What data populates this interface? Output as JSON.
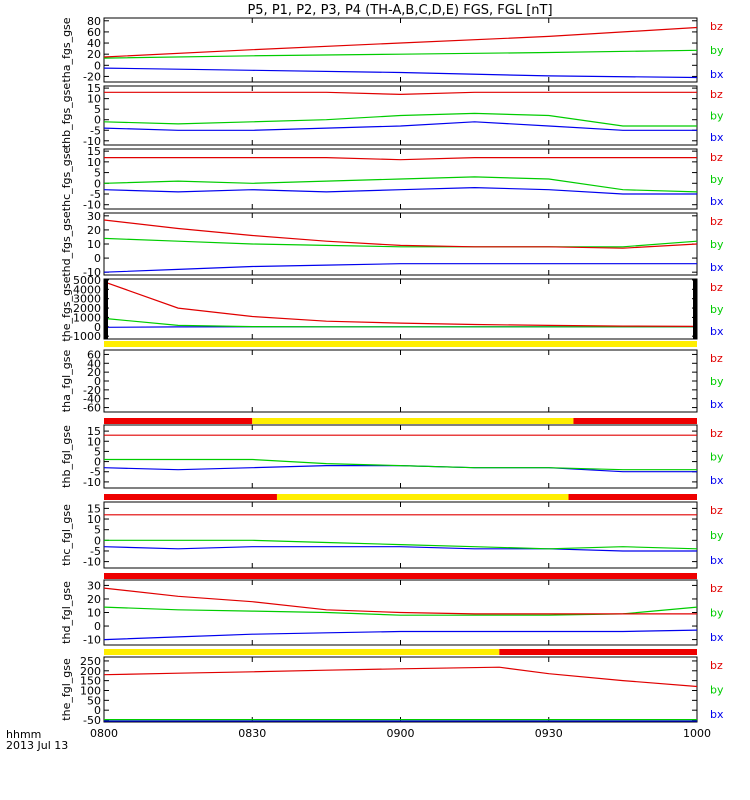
{
  "title": "P5, P1, P2, P3, P4 (TH-A,B,C,D,E) FGS, FGL [nT]",
  "x_axis": {
    "ticks": [
      "0800",
      "0830",
      "0900",
      "0930",
      "1000"
    ],
    "label_line1": "hhmm",
    "label_line2": "2013 Jul 13"
  },
  "colors": {
    "bz": "#e00000",
    "by": "#00cc00",
    "bx": "#0000ee",
    "bar_yellow": "#ffee00",
    "bar_red": "#ee0000",
    "black": "#000000"
  },
  "chart_data": [
    {
      "type": "line",
      "ylabel": "tha_fgs_gse",
      "yticks": [
        "80",
        "60",
        "40",
        "20",
        "0",
        "-20"
      ],
      "ylim": [
        -30,
        85
      ],
      "x": [
        "0800",
        "0830",
        "0900",
        "0930",
        "1000"
      ],
      "series": [
        {
          "name": "bz",
          "values": [
            15,
            28,
            40,
            52,
            68
          ]
        },
        {
          "name": "by",
          "values": [
            13,
            17,
            20,
            23,
            27
          ]
        },
        {
          "name": "bx",
          "values": [
            -5,
            -9,
            -13,
            -19,
            -22
          ]
        }
      ]
    },
    {
      "type": "line",
      "ylabel": "thb_fgs_gse",
      "yticks": [
        "15",
        "10",
        "5",
        "0",
        "-5",
        "-10"
      ],
      "ylim": [
        -12,
        16
      ],
      "x": [
        "0800",
        "0815",
        "0830",
        "0845",
        "0900",
        "0915",
        "0930",
        "0945",
        "1000"
      ],
      "series": [
        {
          "name": "bz",
          "values": [
            13,
            13,
            13,
            13,
            12,
            13,
            13,
            13,
            13
          ]
        },
        {
          "name": "by",
          "values": [
            -1,
            -2,
            -1,
            0,
            2,
            3,
            2,
            -3,
            -3
          ]
        },
        {
          "name": "bx",
          "values": [
            -4,
            -5,
            -5,
            -4,
            -3,
            -1,
            -3,
            -5,
            -5
          ]
        }
      ]
    },
    {
      "type": "line",
      "ylabel": "thc_fgs_gse",
      "yticks": [
        "15",
        "10",
        "5",
        "0",
        "-5",
        "-10"
      ],
      "ylim": [
        -12,
        16
      ],
      "x": [
        "0800",
        "0815",
        "0830",
        "0845",
        "0900",
        "0915",
        "0930",
        "0945",
        "1000"
      ],
      "series": [
        {
          "name": "bz",
          "values": [
            12,
            12,
            12,
            12,
            11,
            12,
            12,
            12,
            12
          ]
        },
        {
          "name": "by",
          "values": [
            0,
            1,
            0,
            1,
            2,
            3,
            2,
            -3,
            -4
          ]
        },
        {
          "name": "bx",
          "values": [
            -3,
            -4,
            -3,
            -4,
            -3,
            -2,
            -3,
            -5,
            -5
          ]
        }
      ]
    },
    {
      "type": "line",
      "ylabel": "thd_fgs_gse",
      "yticks": [
        "30",
        "20",
        "10",
        "0",
        "-10"
      ],
      "ylim": [
        -12,
        32
      ],
      "x": [
        "0800",
        "0815",
        "0830",
        "0845",
        "0900",
        "0915",
        "0930",
        "0945",
        "1000"
      ],
      "series": [
        {
          "name": "bz",
          "values": [
            27,
            21,
            16,
            12,
            9,
            8,
            8,
            7,
            10
          ]
        },
        {
          "name": "by",
          "values": [
            14,
            12,
            10,
            9,
            8,
            8,
            8,
            8,
            12
          ]
        },
        {
          "name": "bx",
          "values": [
            -10,
            -8,
            -6,
            -5,
            -4,
            -4,
            -4,
            -4,
            -4
          ]
        }
      ]
    },
    {
      "type": "line",
      "ylabel": "the_fgs_gse",
      "yticks": [
        "5000",
        "4000",
        "3000",
        "2000",
        "1000",
        "0",
        "-1000"
      ],
      "ylim": [
        -1300,
        5100
      ],
      "x": [
        "0800",
        "0815",
        "0830",
        "0845",
        "0900",
        "0915",
        "0930",
        "0945",
        "1000"
      ],
      "series": [
        {
          "name": "bz",
          "values": [
            4800,
            2000,
            1100,
            600,
            400,
            250,
            150,
            80,
            40
          ]
        },
        {
          "name": "by",
          "values": [
            900,
            150,
            20,
            0,
            0,
            0,
            0,
            0,
            0
          ]
        },
        {
          "name": "bx",
          "values": [
            -50,
            -10,
            0,
            0,
            0,
            0,
            0,
            0,
            0
          ]
        }
      ],
      "state_bar": [
        {
          "from": "0800",
          "to": "1000",
          "color": "yellow"
        }
      ]
    },
    {
      "type": "line",
      "ylabel": "tha_fgl_gse",
      "yticks": [
        "60",
        "40",
        "20",
        "0",
        "-20",
        "-40",
        "-60"
      ],
      "ylim": [
        -70,
        70
      ],
      "x": [],
      "series": [],
      "state_bar": [
        {
          "from": "0800",
          "to": "0830",
          "color": "red"
        },
        {
          "from": "0830",
          "to": "0935",
          "color": "yellow"
        },
        {
          "from": "0935",
          "to": "1000",
          "color": "red"
        }
      ]
    },
    {
      "type": "line",
      "ylabel": "thb_fgl_gse",
      "yticks": [
        "15",
        "10",
        "5",
        "0",
        "-5",
        "-10"
      ],
      "ylim": [
        -13,
        18
      ],
      "x": [
        "0800",
        "0815",
        "0830",
        "0845",
        "0900",
        "0915",
        "0930",
        "0945",
        "1000"
      ],
      "series": [
        {
          "name": "bz",
          "values": [
            13,
            13,
            13,
            13,
            13,
            13,
            13,
            13,
            13
          ]
        },
        {
          "name": "by",
          "values": [
            1,
            1,
            1,
            -1,
            -2,
            -3,
            -3,
            -4,
            -4
          ]
        },
        {
          "name": "bx",
          "values": [
            -3,
            -4,
            -3,
            -2,
            -2,
            -3,
            -3,
            -5,
            -5
          ]
        }
      ],
      "state_bar": [
        {
          "from": "0800",
          "to": "0835",
          "color": "red"
        },
        {
          "from": "0835",
          "to": "0934",
          "color": "yellow"
        },
        {
          "from": "0934",
          "to": "1000",
          "color": "red"
        }
      ]
    },
    {
      "type": "line",
      "ylabel": "thc_fgl_gse",
      "yticks": [
        "15",
        "10",
        "5",
        "0",
        "-5",
        "-10"
      ],
      "ylim": [
        -13,
        18
      ],
      "x": [
        "0800",
        "0815",
        "0830",
        "0845",
        "0900",
        "0915",
        "0930",
        "0945",
        "1000"
      ],
      "series": [
        {
          "name": "bz",
          "values": [
            12,
            12,
            12,
            12,
            12,
            12,
            12,
            12,
            12
          ]
        },
        {
          "name": "by",
          "values": [
            0,
            0,
            0,
            -1,
            -2,
            -3,
            -4,
            -3,
            -4
          ]
        },
        {
          "name": "bx",
          "values": [
            -3,
            -4,
            -3,
            -3,
            -3,
            -4,
            -4,
            -5,
            -5
          ]
        }
      ],
      "state_bar": [
        {
          "from": "0800",
          "to": "1000",
          "color": "red"
        }
      ]
    },
    {
      "type": "line",
      "ylabel": "thd_fgl_gse",
      "yticks": [
        "30",
        "20",
        "10",
        "0",
        "-10"
      ],
      "ylim": [
        -14,
        34
      ],
      "x": [
        "0800",
        "0815",
        "0830",
        "0845",
        "0900",
        "0915",
        "0930",
        "0945",
        "1000"
      ],
      "series": [
        {
          "name": "bz",
          "values": [
            28,
            22,
            18,
            12,
            10,
            9,
            9,
            9,
            9
          ]
        },
        {
          "name": "by",
          "values": [
            14,
            12,
            11,
            10,
            8,
            8,
            8,
            9,
            14
          ]
        },
        {
          "name": "bx",
          "values": [
            -10,
            -8,
            -6,
            -5,
            -4,
            -4,
            -4,
            -4,
            -3
          ]
        }
      ],
      "state_bar": [
        {
          "from": "0800",
          "to": "0920",
          "color": "yellow"
        },
        {
          "from": "0920",
          "to": "1000",
          "color": "red"
        }
      ]
    },
    {
      "type": "line",
      "ylabel": "the_fgl_gse",
      "yticks": [
        "250",
        "200",
        "150",
        "100",
        "50",
        "0",
        "-50"
      ],
      "ylim": [
        -60,
        270
      ],
      "x": [
        "0800",
        "0815",
        "0830",
        "0845",
        "0900",
        "0920",
        "0930",
        "0945",
        "1000"
      ],
      "series": [
        {
          "name": "bz",
          "values": [
            180,
            188,
            195,
            203,
            210,
            218,
            185,
            150,
            120
          ]
        },
        {
          "name": "by",
          "values": [
            -48,
            -48,
            -48,
            -48,
            -48,
            -48,
            -48,
            -48,
            -48
          ]
        },
        {
          "name": "bx",
          "values": [
            -55,
            -55,
            -55,
            -55,
            -55,
            -55,
            -55,
            -55,
            -55
          ]
        }
      ]
    }
  ]
}
